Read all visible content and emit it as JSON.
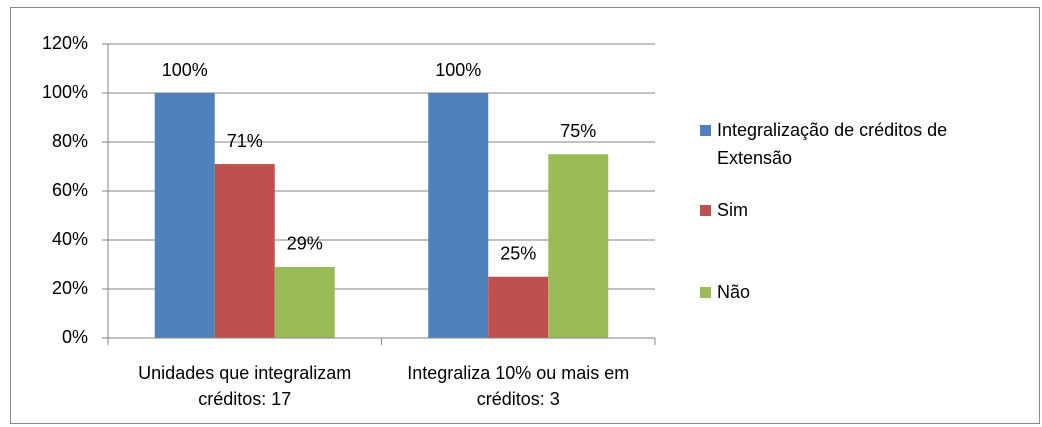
{
  "chart_data": {
    "type": "bar",
    "categories": [
      "Unidades que integralizam créditos: 17",
      "Integraliza 10% ou mais em créditos: 3"
    ],
    "series": [
      {
        "name": "Integralização de créditos de Extensão",
        "color": "#4f81bd",
        "values": [
          100,
          100
        ],
        "value_labels": [
          "100%",
          "100%"
        ]
      },
      {
        "name": "Sim",
        "color": "#c0504d",
        "values": [
          71,
          25
        ],
        "value_labels": [
          "71%",
          "25%"
        ]
      },
      {
        "name": "Não",
        "color": "#9bbb59",
        "values": [
          29,
          75
        ],
        "value_labels": [
          "29%",
          "75%"
        ]
      }
    ],
    "ylim": [
      0,
      120
    ],
    "yticks": [
      {
        "value": 0,
        "label": "0%"
      },
      {
        "value": 20,
        "label": "20%"
      },
      {
        "value": 40,
        "label": "40%"
      },
      {
        "value": 60,
        "label": "60%"
      },
      {
        "value": 80,
        "label": "80%"
      },
      {
        "value": 100,
        "label": "100%"
      },
      {
        "value": 120,
        "label": "120%"
      }
    ],
    "grid": true,
    "legend": "right"
  }
}
